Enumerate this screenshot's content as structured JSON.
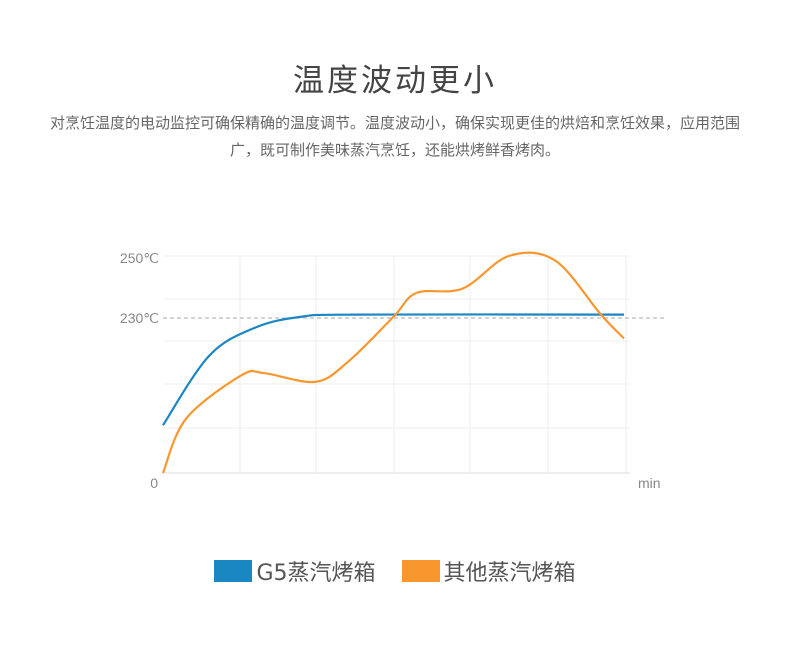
{
  "header": {
    "title": "温度波动更小",
    "description": "对烹饪温度的电动监控可确保精确的温度调节。温度波动小，确保实现更佳的烘焙和烹饪效果，应用范围广，既可制作美味蒸汽烹饪，还能烘烤鲜香烤肉。"
  },
  "chart_data": {
    "type": "line",
    "title": "",
    "xlabel": "min",
    "ylabel": "",
    "y_tick_labels": [
      "250℃",
      "230℃",
      "0"
    ],
    "reference_line": {
      "label": "230℃",
      "style": "dashed"
    },
    "grid": true,
    "legend_position": "bottom",
    "series": [
      {
        "name": "G5蒸汽烤箱",
        "color": "#1a86c2",
        "points": [
          [
            0,
            0.22
          ],
          [
            0.1,
            0.54
          ],
          [
            0.2,
            0.67
          ],
          [
            0.3,
            0.72
          ],
          [
            0.42,
            0.73
          ],
          [
            1.0,
            0.73
          ]
        ]
      },
      {
        "name": "其他蒸汽烤箱",
        "color": "#f7972e",
        "points": [
          [
            0,
            0.0
          ],
          [
            0.05,
            0.25
          ],
          [
            0.17,
            0.45
          ],
          [
            0.22,
            0.46
          ],
          [
            0.33,
            0.42
          ],
          [
            0.4,
            0.51
          ],
          [
            0.5,
            0.72
          ],
          [
            0.55,
            0.83
          ],
          [
            0.65,
            0.85
          ],
          [
            0.75,
            1.0
          ],
          [
            0.85,
            0.98
          ],
          [
            0.95,
            0.73
          ],
          [
            1.0,
            0.62
          ]
        ]
      }
    ]
  },
  "legend": {
    "items": [
      {
        "label": "G5蒸汽烤箱",
        "color": "#1a86c2"
      },
      {
        "label": "其他蒸汽烤箱",
        "color": "#f7972e"
      }
    ]
  }
}
